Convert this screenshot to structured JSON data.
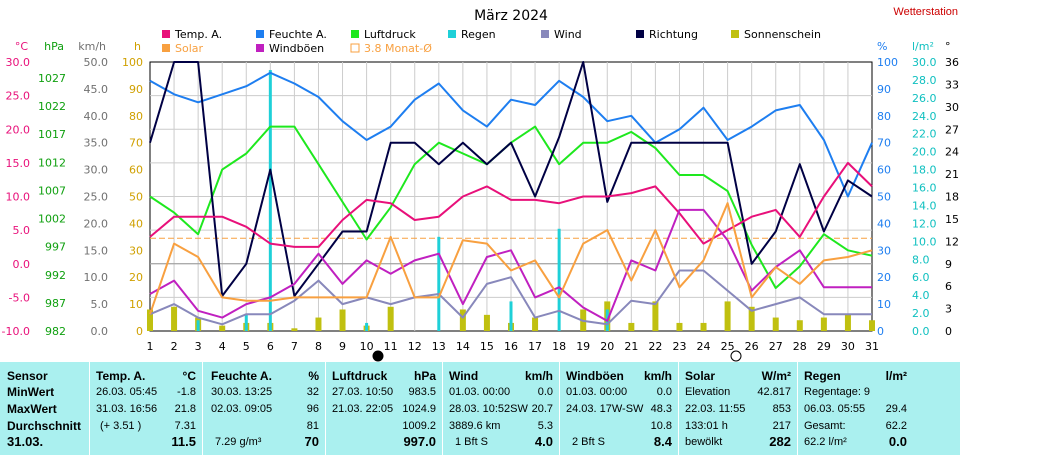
{
  "app_title": "Wetterstation",
  "chart_data": {
    "type": "line",
    "title": "März 2024",
    "x": [
      1,
      2,
      3,
      4,
      5,
      6,
      7,
      8,
      9,
      10,
      11,
      12,
      13,
      14,
      15,
      16,
      17,
      18,
      19,
      20,
      21,
      22,
      23,
      24,
      25,
      26,
      27,
      28,
      29,
      30,
      31
    ],
    "xlim": [
      1,
      31
    ],
    "legend": [
      {
        "label": "Temp. A.",
        "color": "#e8107a",
        "swatch": "box"
      },
      {
        "label": "Feuchte A.",
        "color": "#1e7ef0",
        "swatch": "box"
      },
      {
        "label": "Luftdruck",
        "color": "#1ee81e",
        "swatch": "box"
      },
      {
        "label": "Regen",
        "color": "#1ed0d8",
        "swatch": "box"
      },
      {
        "label": "Wind",
        "color": "#8888bb",
        "swatch": "box"
      },
      {
        "label": "Richtung",
        "color": "#000044",
        "swatch": "box"
      },
      {
        "label": "Sonnenschein",
        "color": "#c0c010",
        "swatch": "box"
      },
      {
        "label": "Solar",
        "color": "#f8a040",
        "swatch": "box"
      },
      {
        "label": "Windböen",
        "color": "#c020c0",
        "swatch": "box"
      },
      {
        "label": "3.8 Monat-Ø",
        "color": "#f8a040",
        "swatch": "outline"
      }
    ],
    "axes": {
      "temp": {
        "label": "°C",
        "color": "#e8107a",
        "min": -10,
        "max": 30,
        "ticks": [
          "30.0",
          "25.0",
          "20.0",
          "15.0",
          "10.0",
          "5.0",
          "0.0",
          "-5.0",
          "-10.0"
        ]
      },
      "pressure": {
        "label": "hPa",
        "color": "#10a010",
        "min": 982,
        "max": 1032,
        "ticks": [
          "1027",
          "1022",
          "1017",
          "1012",
          "1007",
          "1002",
          "997",
          "992",
          "987",
          "982"
        ]
      },
      "wind": {
        "label": "km/h",
        "color": "#707070",
        "min": 0,
        "max": 50,
        "ticks": [
          "50.0",
          "45.0",
          "40.0",
          "35.0",
          "30.0",
          "25.0",
          "20.0",
          "15.0",
          "10.0",
          "5.0",
          "0.0"
        ]
      },
      "hours": {
        "label": "h",
        "color": "#d0a000",
        "min": 0,
        "max": 100,
        "ticks": [
          "100",
          "90",
          "80",
          "70",
          "60",
          "50",
          "40",
          "30",
          "20",
          "10",
          "0"
        ]
      },
      "humidity": {
        "label": "%",
        "color": "#1e7ef0",
        "min": 0,
        "max": 100,
        "ticks": [
          "100",
          "90",
          "80",
          "70",
          "60",
          "50",
          "40",
          "30",
          "20",
          "10",
          "0"
        ]
      },
      "rain": {
        "label": "l/m²",
        "color": "#10c0c0",
        "min": 0,
        "max": 30,
        "ticks": [
          "30.0",
          "28.0",
          "26.0",
          "24.0",
          "22.0",
          "20.0",
          "18.0",
          "16.0",
          "14.0",
          "12.0",
          "10.0",
          "8.0",
          "6.0",
          "4.0",
          "2.0",
          "0.0"
        ]
      },
      "direction": {
        "label": "°",
        "color": "#000000",
        "ticks": [
          "36",
          "33",
          "30",
          "27",
          "24",
          "21",
          "18",
          "15",
          "12",
          "9",
          "6",
          "3",
          "0"
        ]
      }
    },
    "series": [
      {
        "name": "Luftdruck",
        "axis": "pressure",
        "color": "#1ee81e",
        "values": [
          1007,
          1004,
          1000,
          1012,
          1015,
          1020,
          1020,
          1013,
          1006,
          999,
          1005,
          1013,
          1017,
          1015,
          1013,
          1017,
          1020,
          1013,
          1017,
          1017,
          1019,
          1016,
          1011,
          1011,
          1008,
          998,
          990,
          994,
          1000,
          997,
          996
        ]
      },
      {
        "name": "Feuchte A.",
        "axis": "humidity",
        "color": "#1e7ef0",
        "values": [
          93,
          88,
          85,
          88,
          91,
          96,
          92,
          87,
          78,
          71,
          76,
          86,
          92,
          82,
          76,
          86,
          84,
          93,
          87,
          78,
          80,
          70,
          75,
          83,
          71,
          76,
          82,
          84,
          71,
          50,
          70
        ]
      },
      {
        "name": "Richtung",
        "axis": "humidity",
        "color": "#000044",
        "values": [
          70,
          100,
          100,
          13,
          25,
          60,
          13,
          25,
          37,
          37,
          70,
          70,
          62,
          70,
          62,
          70,
          50,
          72,
          100,
          48,
          70,
          70,
          70,
          70,
          70,
          25,
          37,
          62,
          37,
          56,
          50
        ]
      },
      {
        "name": "Temp. A.",
        "axis": "temp",
        "color": "#e8107a",
        "values": [
          4,
          7,
          7,
          7,
          5.5,
          3,
          2.5,
          2.5,
          6.5,
          9.5,
          9,
          6.5,
          7,
          10,
          11.5,
          9.5,
          9.5,
          9,
          10,
          10,
          10.5,
          11.5,
          7.5,
          3,
          5,
          7,
          8,
          4,
          10,
          15,
          11.5
        ]
      },
      {
        "name": "Windböen",
        "axis": "temp",
        "color": "#c020c0",
        "values": [
          -4.5,
          -2.5,
          -7,
          -8,
          -6,
          -5,
          -3,
          1.5,
          -3,
          0.5,
          -1.5,
          0.5,
          1.5,
          -6,
          1,
          2,
          -5,
          -3.5,
          -6.5,
          -8.5,
          0.5,
          -1,
          8,
          8,
          3.5,
          -4,
          -0.5,
          2,
          -3.5,
          -3.5,
          -3.5
        ]
      },
      {
        "name": "Wind",
        "axis": "temp",
        "color": "#8888bb",
        "values": [
          -7.5,
          -6,
          -8,
          -9,
          -7.5,
          -7.5,
          -5.5,
          -2.5,
          -6,
          -5,
          -6,
          -5,
          -4.5,
          -8,
          -3,
          -2,
          -8,
          -7,
          -8.5,
          -9,
          -5.5,
          -6,
          -1,
          -1,
          -4,
          -7,
          -6,
          -5,
          -7.5,
          -7.5,
          -7.5
        ]
      },
      {
        "name": "Solar",
        "axis": "temp",
        "color": "#f8a040",
        "values": [
          -7.5,
          3,
          1,
          -5,
          -5.5,
          -5.5,
          -5,
          -5,
          -5,
          -5,
          4,
          -5,
          -5,
          3.5,
          3,
          -1,
          0.5,
          -5,
          3,
          5,
          -2.5,
          5,
          -3.5,
          0.5,
          9,
          -5,
          -0.5,
          -3,
          0.5,
          1,
          2
        ]
      }
    ],
    "monthly_avg": {
      "label": "3.8 Monat-Ø",
      "axis": "temp",
      "value": 3.8,
      "color": "#f8a040"
    },
    "rain_bars": {
      "name": "Regen",
      "axis": "humidity",
      "color": "#1ed0d8",
      "values": [
        0,
        0,
        4,
        0,
        6,
        97,
        0,
        0,
        0,
        3,
        0,
        0,
        35,
        0,
        0,
        11,
        0,
        38,
        0,
        8,
        0,
        0,
        0,
        0,
        0,
        0,
        0,
        0,
        0,
        0,
        0
      ]
    },
    "sunshine_bars": {
      "name": "Sonnenschein",
      "axis": "hours",
      "color": "#c0c010",
      "values": [
        8,
        9,
        5,
        2,
        3,
        3,
        1,
        5,
        8,
        2,
        9,
        0,
        0,
        8,
        6,
        3,
        5,
        0,
        8,
        11,
        3,
        11,
        3,
        3,
        11,
        9,
        5,
        4,
        5,
        6,
        4
      ]
    },
    "grid": true
  },
  "stats": {
    "sensor": {
      "head": "Sensor",
      "rows": [
        "MinWert",
        "MaxWert",
        "Durchschnitt"
      ],
      "date": "31.03."
    },
    "temp": {
      "head": "Temp. A.",
      "unit": "°C",
      "min_time": "26.03.  05:45",
      "min": "-1.8",
      "max_time": "31.03.  16:56",
      "max": "21.8",
      "avg_note": "(+ 3.51 )",
      "avg": "7.31",
      "today": "11.5"
    },
    "humidity": {
      "head": "Feuchte A.",
      "unit": "%",
      "min_time": "30.03.  13:25",
      "min": "32",
      "max_time": "02.03.  09:05",
      "max": "96",
      "avg": "81",
      "extra": "7.29 g/m³",
      "today": "70"
    },
    "pressure": {
      "head": "Luftdruck",
      "unit": "hPa",
      "min_time": "27.03.  10:50",
      "min": "983.5",
      "max_time": "21.03.  22:05",
      "max": "1024.9",
      "avg": "1009.2",
      "today": "997.0"
    },
    "wind": {
      "head": "Wind",
      "unit": "km/h",
      "min_time": "01.03.  00:00",
      "min": "0.0",
      "max_time": "28.03.  10:52SW",
      "max": "20.7",
      "avg_note": "3889.6 km",
      "avg": "5.3",
      "extra": "1 Bft S",
      "today": "4.0"
    },
    "gusts": {
      "head": "Windböen",
      "unit": "km/h",
      "min_time": "01.03.  00:00",
      "min": "0.0",
      "max_time": "24.03.  17W-SW",
      "max": "48.3",
      "avg": "10.8",
      "extra": "2 Bft S",
      "today": "8.4"
    },
    "solar": {
      "head": "Solar",
      "unit": "W/m²",
      "r1_label": "Elevation",
      "r1_val": "42.817",
      "r2_label": "22.03.  11:55",
      "r2_val": "853",
      "r3_label": "133:01 h",
      "r3_val": "217",
      "r4_label": "bewölkt",
      "r4_val": "282"
    },
    "rain": {
      "head": "Regen",
      "unit": "l/m²",
      "r1_label": "Regentage: 9",
      "r2_label": "06.03.  05:55",
      "r2_val": "29.4",
      "r3_label": "Gesamt:",
      "r3_val": "62.2",
      "r4_label": "62.2 l/m²",
      "r4_val": "0.0"
    }
  }
}
